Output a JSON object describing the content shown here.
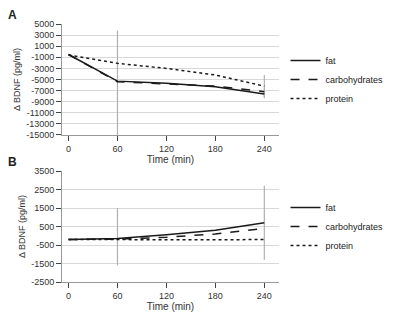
{
  "chart_data": [
    {
      "type": "line",
      "title": "A",
      "xlabel": "Time (min)",
      "ylabel": "Δ BDNF (pg/ml)",
      "x": [
        0,
        60,
        120,
        180,
        240
      ],
      "series": [
        {
          "name": "fat",
          "color": "#1a1a1a",
          "line_style": "solid",
          "values": [
            -500,
            -5300,
            -5700,
            -6300,
            -7600
          ],
          "error_minus": [
            null,
            null,
            null,
            null,
            800
          ],
          "error_plus": [
            null,
            null,
            null,
            null,
            800
          ]
        },
        {
          "name": "carbohydrates",
          "color": "#1a1a1a",
          "line_style": "dash",
          "values": [
            -500,
            -5400,
            -5800,
            -6200,
            -7200
          ]
        },
        {
          "name": "protein",
          "color": "#1a1a1a",
          "line_style": "dot",
          "values": [
            -600,
            -2100,
            -3000,
            -4200,
            -6200
          ],
          "error_minus": [
            null,
            null,
            null,
            null,
            2000
          ],
          "error_plus": [
            null,
            null,
            null,
            null,
            2000
          ]
        }
      ],
      "error_line": {
        "x": 60,
        "low": -15000,
        "high": 3800
      },
      "xlim": [
        -8,
        258
      ],
      "xticks": [
        0,
        60,
        120,
        180,
        240
      ],
      "ylim": [
        -15000,
        5000
      ],
      "yticks": [
        5000,
        3000,
        1000,
        -1000,
        -3000,
        -5000,
        -7000,
        -9000,
        -11000,
        -13000,
        -15000
      ],
      "grid": true
    },
    {
      "type": "line",
      "title": "B",
      "xlabel": "Time (min)",
      "ylabel": "Δ BDNF (pg/ml)",
      "x": [
        0,
        60,
        120,
        180,
        240
      ],
      "series": [
        {
          "name": "fat",
          "color": "#1a1a1a",
          "line_style": "solid",
          "values": [
            -200,
            -150,
            50,
            300,
            700
          ],
          "error_minus": [
            null,
            null,
            null,
            null,
            2000
          ],
          "error_plus": [
            null,
            null,
            null,
            null,
            2000
          ]
        },
        {
          "name": "carbohydrates",
          "color": "#1a1a1a",
          "line_style": "dash",
          "values": [
            -200,
            -180,
            -80,
            100,
            400
          ]
        },
        {
          "name": "protein",
          "color": "#1a1a1a",
          "line_style": "dot",
          "values": [
            -200,
            -220,
            -230,
            -220,
            -200
          ]
        }
      ],
      "error_line": {
        "x": 60,
        "low": -1600,
        "high": 1500
      },
      "xlim": [
        -8,
        258
      ],
      "xticks": [
        0,
        60,
        120,
        180,
        240
      ],
      "ylim": [
        -2500,
        3500
      ],
      "yticks": [
        3500,
        2500,
        1500,
        500,
        -500,
        -1500,
        -2500
      ],
      "grid": true
    }
  ]
}
